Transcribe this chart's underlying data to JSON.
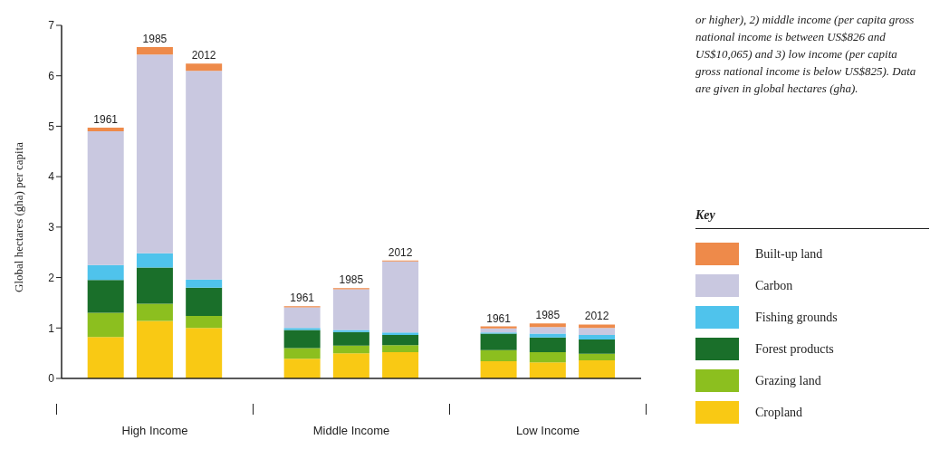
{
  "chart_data": {
    "type": "bar",
    "stacked": true,
    "ylabel": "Global hectares (gha) per capita",
    "legend_title": "Key",
    "legend": "right",
    "categories": [
      "1961",
      "1985",
      "2012",
      "1961",
      "1985",
      "2012",
      "1961",
      "1985",
      "2012"
    ],
    "series": [
      {
        "name": "Cropland",
        "color": "#f9c914",
        "values": [
          0.82,
          1.14,
          1.0,
          0.39,
          0.5,
          0.52,
          0.34,
          0.32,
          0.36
        ]
      },
      {
        "name": "Grazing land",
        "color": "#8cbf1f",
        "values": [
          0.48,
          0.34,
          0.24,
          0.21,
          0.15,
          0.14,
          0.22,
          0.2,
          0.13
        ]
      },
      {
        "name": "Forest products",
        "color": "#1a6f2a",
        "values": [
          0.65,
          0.72,
          0.56,
          0.36,
          0.27,
          0.2,
          0.33,
          0.29,
          0.28
        ]
      },
      {
        "name": "Fishing grounds",
        "color": "#4fc3ec",
        "values": [
          0.3,
          0.28,
          0.16,
          0.04,
          0.04,
          0.05,
          0.02,
          0.08,
          0.09
        ]
      },
      {
        "name": "Carbon",
        "color": "#c9c8e0",
        "values": [
          2.65,
          3.94,
          4.14,
          0.41,
          0.81,
          1.41,
          0.08,
          0.13,
          0.14
        ]
      },
      {
        "name": "Built-up land",
        "color": "#ee8a4a",
        "values": [
          0.07,
          0.15,
          0.14,
          0.02,
          0.02,
          0.02,
          0.04,
          0.07,
          0.07
        ]
      }
    ],
    "ylim": [
      0,
      7
    ],
    "yticks": [
      0,
      1,
      2,
      3,
      4,
      5,
      6,
      7
    ],
    "grid": false,
    "annotations": [
      "High Income",
      "Middle Income",
      "Low Income",
      "or higher), 2) middle income (per capita gross national income is between US$826 and US$10,065) and 3) low income (per capita gross national income is below US$825). Data are given in global hectares (gha)."
    ]
  }
}
